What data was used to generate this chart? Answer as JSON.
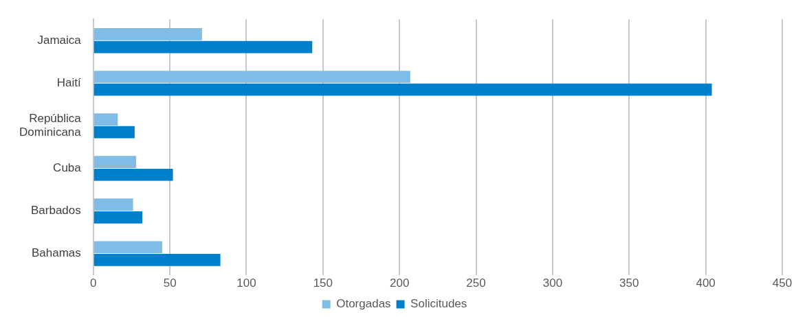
{
  "chart_data": {
    "type": "bar",
    "orientation": "horizontal",
    "categories": [
      "Jamaica",
      "Haití",
      "República Dominicana",
      "Cuba",
      "Barbados",
      "Bahamas"
    ],
    "series": [
      {
        "name": "Otorgadas",
        "color": "#7fbde6",
        "values": [
          71,
          207,
          16,
          28,
          26,
          45
        ]
      },
      {
        "name": "Solicitudes",
        "color": "#0080cc",
        "values": [
          143,
          404,
          27,
          52,
          32,
          83
        ]
      }
    ],
    "xlim": [
      0,
      450
    ],
    "xticks": [
      0,
      50,
      100,
      150,
      200,
      250,
      300,
      350,
      400,
      450
    ],
    "grid": "x",
    "legend": "bottom"
  }
}
